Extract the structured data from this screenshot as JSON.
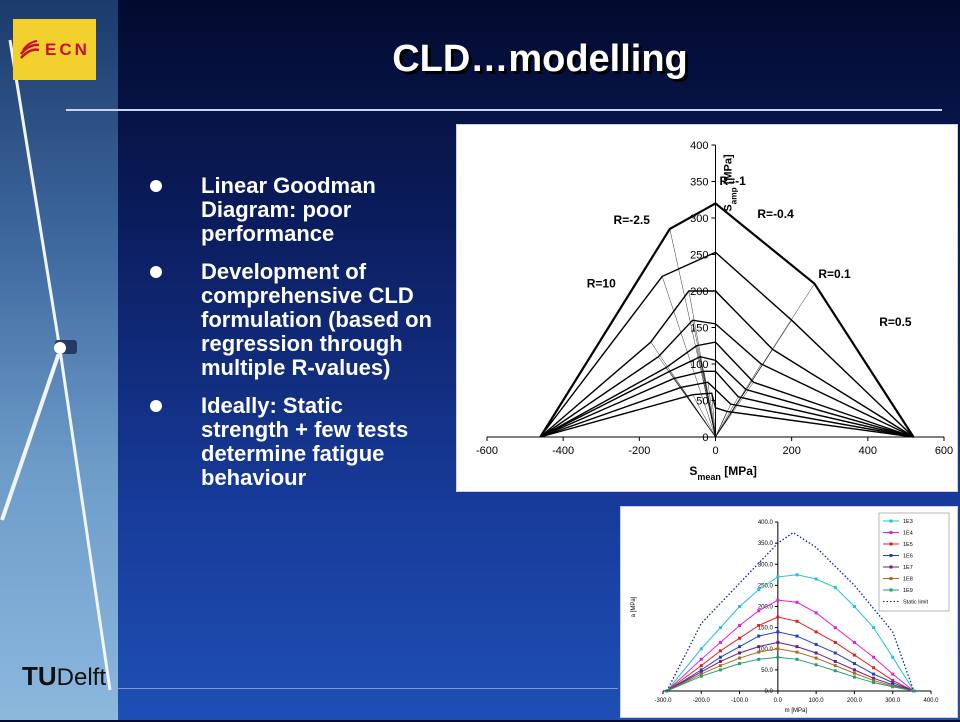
{
  "title": "CLD…modelling",
  "logo": {
    "name": "ECN",
    "tud_bold": "TU",
    "tud_rest": "Delft"
  },
  "bullets": [
    "Linear Goodman Diagram: poor performance",
    "Development of comprehensive CLD formulation (based on regression through multiple R-values)",
    "Ideally: Static strength + few tests determine fatigue behaviour"
  ],
  "colors": {
    "title": "#ffffff",
    "bullet_text": "#ffffff",
    "ecn_logo_bg": "#f2d02e",
    "ecn_logo_text": "#c8102e"
  },
  "chart_data": [
    {
      "type": "line",
      "xlabel": "S_mean [MPa]",
      "ylabel": "S_amp [MPa]",
      "xlim": [
        -600,
        600
      ],
      "ylim": [
        0,
        400
      ],
      "xticks": [
        -600,
        -400,
        -200,
        0,
        200,
        400,
        600
      ],
      "yticks": [
        0,
        50,
        100,
        150,
        200,
        250,
        300,
        350,
        400
      ],
      "annotations": [
        "R=-1",
        "R=-2.5",
        "R=-0.4",
        "R=10",
        "R=0.1",
        "R=0.5"
      ],
      "series": [
        {
          "x": [
            -460,
            -120,
            0,
            260,
            520
          ],
          "y": [
            0,
            285,
            320,
            210,
            0
          ]
        },
        {
          "x": [
            -460,
            -140,
            0,
            200,
            520
          ],
          "y": [
            0,
            220,
            253,
            160,
            0
          ]
        },
        {
          "x": [
            -460,
            -170,
            -70,
            0,
            150,
            520
          ],
          "y": [
            0,
            130,
            200,
            200,
            120,
            0
          ]
        },
        {
          "x": [
            -460,
            -150,
            -60,
            0,
            120,
            520
          ],
          "y": [
            0,
            110,
            160,
            155,
            100,
            0
          ]
        },
        {
          "x": [
            -460,
            -130,
            -50,
            0,
            100,
            520
          ],
          "y": [
            0,
            95,
            125,
            130,
            75,
            0
          ]
        },
        {
          "x": [
            -460,
            -120,
            -40,
            0,
            80,
            520
          ],
          "y": [
            0,
            90,
            110,
            105,
            65,
            0
          ]
        },
        {
          "x": [
            -460,
            -110,
            -30,
            0,
            60,
            520
          ],
          "y": [
            0,
            80,
            90,
            90,
            55,
            0
          ]
        },
        {
          "x": [
            -460,
            -90,
            -20,
            0,
            40,
            520
          ],
          "y": [
            0,
            68,
            75,
            65,
            45,
            0
          ]
        },
        {
          "x": [
            -460,
            -60,
            -10,
            0,
            30,
            520
          ],
          "y": [
            0,
            58,
            60,
            40,
            35,
            0
          ]
        }
      ]
    },
    {
      "type": "line",
      "xlabel": "m [MPa]",
      "ylabel": "a [MPa]",
      "xlim": [
        -300,
        400
      ],
      "ylim": [
        0,
        400
      ],
      "xticks": [
        "-300.0",
        "-200.0",
        "-100.0",
        "0.0",
        "100.0",
        "200.0",
        "300.0",
        "400.0"
      ],
      "yticks": [
        "0.0",
        "50.0",
        "100.0",
        "150.0",
        "200.0",
        "250.0",
        "300.0",
        "350.0",
        "400.0"
      ],
      "series": [
        {
          "name": "1E3",
          "color": "#22c3d6",
          "x": [
            -290,
            -200,
            -150,
            -100,
            -50,
            0,
            50,
            100,
            150,
            200,
            250,
            300,
            355
          ],
          "y": [
            0,
            100,
            150,
            200,
            240,
            270,
            275,
            265,
            245,
            200,
            150,
            80,
            0
          ]
        },
        {
          "name": "1E4",
          "color": "#e020e0",
          "x": [
            -290,
            -200,
            -150,
            -100,
            -50,
            0,
            50,
            100,
            150,
            200,
            250,
            300,
            355
          ],
          "y": [
            0,
            75,
            115,
            155,
            190,
            215,
            210,
            185,
            150,
            115,
            80,
            40,
            0
          ]
        },
        {
          "name": "1E5",
          "color": "#e02020",
          "x": [
            -290,
            -200,
            -150,
            -100,
            -50,
            0,
            50,
            100,
            150,
            200,
            250,
            300,
            355
          ],
          "y": [
            0,
            60,
            95,
            125,
            155,
            175,
            165,
            140,
            115,
            85,
            55,
            25,
            0
          ]
        },
        {
          "name": "1E6",
          "color": "#1f3fd0",
          "x": [
            -290,
            -200,
            -150,
            -100,
            -50,
            0,
            50,
            100,
            150,
            200,
            250,
            300,
            355
          ],
          "y": [
            0,
            50,
            80,
            105,
            130,
            140,
            130,
            110,
            90,
            65,
            40,
            20,
            0
          ]
        },
        {
          "name": "1E7",
          "color": "#6a1f7a",
          "x": [
            -290,
            -200,
            -150,
            -100,
            -50,
            0,
            50,
            100,
            150,
            200,
            250,
            300,
            355
          ],
          "y": [
            0,
            45,
            70,
            90,
            105,
            115,
            105,
            90,
            70,
            50,
            30,
            15,
            0
          ]
        },
        {
          "name": "1E8",
          "color": "#b06a20",
          "x": [
            -290,
            -200,
            -150,
            -100,
            -50,
            0,
            50,
            100,
            150,
            200,
            250,
            300,
            355
          ],
          "y": [
            0,
            40,
            60,
            78,
            92,
            100,
            92,
            78,
            60,
            42,
            25,
            12,
            0
          ]
        },
        {
          "name": "1E9",
          "color": "#20a070",
          "x": [
            -290,
            -200,
            -150,
            -100,
            -50,
            0,
            50,
            100,
            150,
            200,
            250,
            300,
            355
          ],
          "y": [
            0,
            35,
            50,
            65,
            75,
            80,
            75,
            62,
            48,
            33,
            20,
            10,
            0
          ]
        },
        {
          "name": "Static limit",
          "color": "#0a1f9e",
          "dashed": true,
          "x": [
            -290,
            -200,
            -100,
            0,
            40,
            100,
            200,
            300,
            355
          ],
          "y": [
            0,
            160,
            255,
            350,
            375,
            340,
            250,
            140,
            0
          ]
        }
      ]
    }
  ]
}
